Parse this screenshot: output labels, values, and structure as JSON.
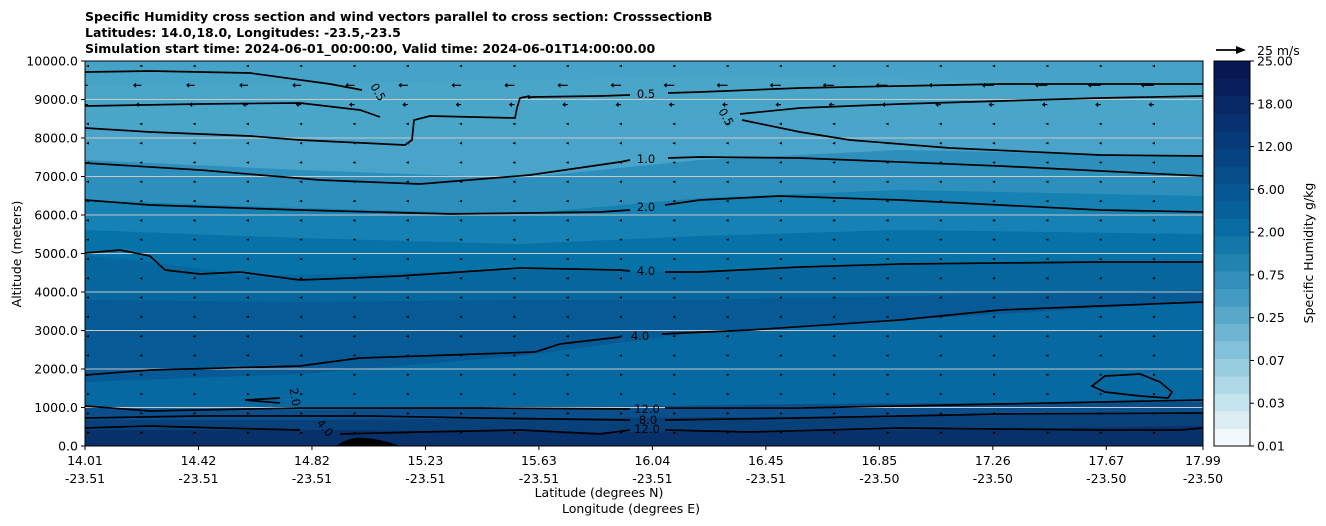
{
  "chart_data": {
    "type": "heatmap",
    "title_lines": [
      "Specific Humidity cross section and wind vectors parallel to cross section: CrosssectionB",
      "Latitudes: 14.0,18.0, Longitudes: -23.5,-23.5",
      "Simulation start time: 2024-06-01_00:00:00, Valid time: 2024-06-01T14:00:00.00"
    ],
    "xlabel": "Latitude (degrees N)",
    "xlabel2": "Longitude (degrees E)",
    "ylabel": "Altitude (meters)",
    "ylim": [
      0,
      10000
    ],
    "yticks": [
      0,
      1000,
      2000,
      3000,
      4000,
      5000,
      6000,
      7000,
      8000,
      9000,
      10000
    ],
    "ytick_labels": [
      "0.0",
      "1000.0",
      "2000.0",
      "3000.0",
      "4000.0",
      "5000.0",
      "6000.0",
      "7000.0",
      "8000.0",
      "9000.0",
      "10000.0"
    ],
    "x_ticks": [
      {
        "lat": "14.01",
        "lon": "-23.51"
      },
      {
        "lat": "14.42",
        "lon": "-23.51"
      },
      {
        "lat": "14.82",
        "lon": "-23.51"
      },
      {
        "lat": "15.23",
        "lon": "-23.51"
      },
      {
        "lat": "15.63",
        "lon": "-23.51"
      },
      {
        "lat": "16.04",
        "lon": "-23.51"
      },
      {
        "lat": "16.45",
        "lon": "-23.51"
      },
      {
        "lat": "16.85",
        "lon": "-23.50"
      },
      {
        "lat": "17.26",
        "lon": "-23.50"
      },
      {
        "lat": "17.67",
        "lon": "-23.50"
      },
      {
        "lat": "17.99",
        "lon": "-23.50"
      }
    ],
    "colorbar": {
      "label": "Specific Humidity g/kg",
      "tick_labels": [
        "0.01",
        "0.03",
        "0.07",
        "0.25",
        "0.75",
        "2.00",
        "6.00",
        "12.00",
        "18.00",
        "25.00"
      ]
    },
    "quiver_key": "25 m/s",
    "contour_labels": [
      "0.5",
      "0.5",
      "0.5",
      "1.0",
      "2.0",
      "4.0",
      "4.0",
      "2.0",
      "12.0",
      "4.0",
      "8.0",
      "12.0"
    ],
    "colors": {
      "background_top": "#4aa3c8",
      "mid": "#0573a8",
      "deep": "#065a96",
      "bottom": "#08306b",
      "contour": "#000000"
    }
  }
}
